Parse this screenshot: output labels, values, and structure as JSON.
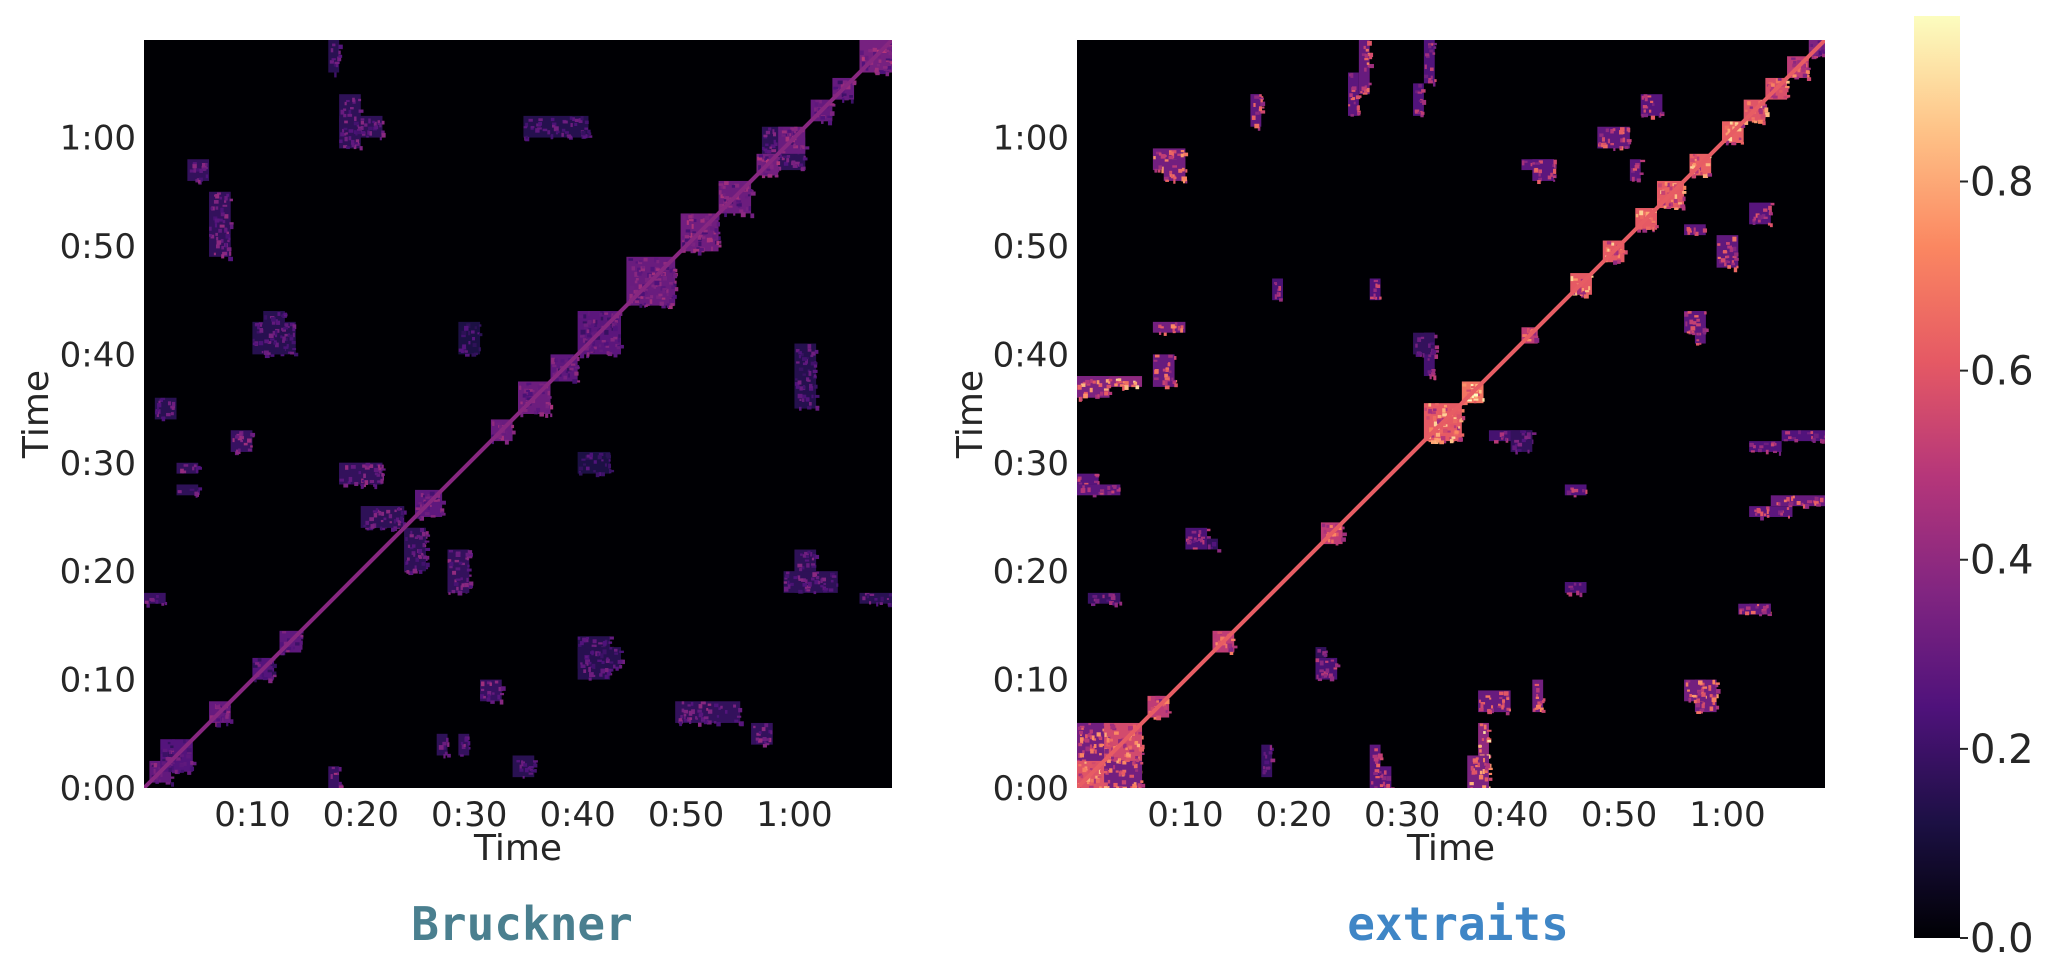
{
  "colors": {
    "background": "#000004",
    "title_left": "#4a7f8f",
    "title_right": "#3f86c6",
    "colormap": [
      "#000004",
      "#1c1044",
      "#4f127b",
      "#812581",
      "#b5367a",
      "#e55964",
      "#fb8761",
      "#fec287",
      "#fcfdbf"
    ]
  },
  "colorbar": {
    "ticks": [
      "0.0",
      "0.2",
      "0.4",
      "0.6",
      "0.8"
    ],
    "tick_values": [
      0.0,
      0.2,
      0.4,
      0.6,
      0.8
    ],
    "range": [
      0.0,
      0.975
    ],
    "colormap_name": "magma"
  },
  "chart_data": [
    {
      "type": "heatmap",
      "title": "Bruckner",
      "xlabel": "Time",
      "ylabel": "Time",
      "x_ticks": [
        "0:10",
        "0:20",
        "0:30",
        "0:40",
        "0:50",
        "1:00"
      ],
      "y_ticks": [
        "0:00",
        "0:10",
        "0:20",
        "0:30",
        "0:40",
        "0:50",
        "1:00"
      ],
      "x_tick_values": [
        10,
        20,
        30,
        40,
        50,
        60
      ],
      "y_tick_values": [
        0,
        10,
        20,
        30,
        40,
        50,
        60
      ],
      "xlim": [
        0,
        69
      ],
      "ylim": [
        0,
        69
      ],
      "colormap": "magma",
      "diagonal_value": 0.38,
      "blocks": [
        {
          "start": 0.5,
          "end": 2.5,
          "value": 0.34
        },
        {
          "start": 1.5,
          "end": 4.5,
          "value": 0.3
        },
        {
          "start": 6,
          "end": 8,
          "value": 0.35
        },
        {
          "start": 10,
          "end": 12,
          "value": 0.3
        },
        {
          "start": 12.5,
          "end": 14.5,
          "value": 0.33
        },
        {
          "start": 25,
          "end": 27.5,
          "value": 0.33
        },
        {
          "start": 32,
          "end": 34,
          "value": 0.36
        },
        {
          "start": 34.5,
          "end": 37.5,
          "value": 0.37
        },
        {
          "start": 37.5,
          "end": 40,
          "value": 0.33
        },
        {
          "start": 40,
          "end": 44,
          "value": 0.32
        },
        {
          "start": 44.5,
          "end": 49,
          "value": 0.36
        },
        {
          "start": 49.5,
          "end": 53,
          "value": 0.38
        },
        {
          "start": 53,
          "end": 56,
          "value": 0.37
        },
        {
          "start": 56.5,
          "end": 58.5,
          "value": 0.39
        },
        {
          "start": 58.5,
          "end": 61,
          "value": 0.36
        },
        {
          "start": 61.5,
          "end": 63.5,
          "value": 0.35
        },
        {
          "start": 63.5,
          "end": 65.5,
          "value": 0.35
        },
        {
          "start": 66,
          "end": 69,
          "value": 0.4
        }
      ],
      "offdiag": [
        {
          "x": [
            4,
            6
          ],
          "y": [
            56,
            58
          ],
          "value": 0.32
        },
        {
          "x": [
            18,
            22
          ],
          "y": [
            60,
            62
          ],
          "value": 0.3
        },
        {
          "x": [
            35,
            41
          ],
          "y": [
            60,
            62
          ],
          "value": 0.26
        },
        {
          "x": [
            10,
            14
          ],
          "y": [
            40,
            43
          ],
          "value": 0.27
        },
        {
          "x": [
            29,
            31
          ],
          "y": [
            40,
            43
          ],
          "value": 0.22
        },
        {
          "x": [
            18,
            22
          ],
          "y": [
            28,
            30
          ],
          "value": 0.32
        },
        {
          "x": [
            28,
            30
          ],
          "y": [
            18,
            22
          ],
          "value": 0.32
        },
        {
          "x": [
            20,
            24
          ],
          "y": [
            24,
            26
          ],
          "value": 0.3
        },
        {
          "x": [
            24,
            26
          ],
          "y": [
            20,
            24
          ],
          "value": 0.3
        },
        {
          "x": [
            3,
            5
          ],
          "y": [
            29,
            30
          ],
          "value": 0.32
        },
        {
          "x": [
            8,
            10
          ],
          "y": [
            31,
            33
          ],
          "value": 0.34
        },
        {
          "x": [
            40,
            44
          ],
          "y": [
            11,
            13
          ],
          "value": 0.27
        },
        {
          "x": [
            49,
            55
          ],
          "y": [
            6,
            8
          ],
          "value": 0.32
        },
        {
          "x": [
            59,
            64
          ],
          "y": [
            18,
            20
          ],
          "value": 0.3
        },
        {
          "x": [
            66,
            69
          ],
          "y": [
            17,
            18
          ],
          "value": 0.28
        },
        {
          "x": [
            17,
            18
          ],
          "y": [
            0,
            2
          ],
          "value": 0.35
        },
        {
          "x": [
            27,
            28
          ],
          "y": [
            3,
            5
          ],
          "value": 0.3
        },
        {
          "x": [
            34,
            36
          ],
          "y": [
            1,
            3
          ],
          "value": 0.28
        },
        {
          "x": [
            58,
            61
          ],
          "y": [
            57,
            60
          ],
          "value": 0.3
        }
      ]
    },
    {
      "type": "heatmap",
      "title": "extraits",
      "xlabel": "Time",
      "ylabel": "Time",
      "x_ticks": [
        "0:10",
        "0:20",
        "0:30",
        "0:40",
        "0:50",
        "1:00"
      ],
      "y_ticks": [
        "0:00",
        "0:10",
        "0:20",
        "0:30",
        "0:40",
        "0:50",
        "1:00"
      ],
      "x_tick_values": [
        10,
        20,
        30,
        40,
        50,
        60
      ],
      "y_tick_values": [
        0,
        10,
        20,
        30,
        40,
        50,
        60
      ],
      "xlim": [
        0,
        69
      ],
      "ylim": [
        0,
        69
      ],
      "colormap": "magma",
      "diagonal_value": 0.62,
      "blocks": [
        {
          "start": 0,
          "end": 2.5,
          "value": 0.7
        },
        {
          "start": 2.5,
          "end": 6,
          "value": 0.66
        },
        {
          "start": 6.5,
          "end": 8.5,
          "value": 0.6
        },
        {
          "start": 12.5,
          "end": 14.5,
          "value": 0.6
        },
        {
          "start": 22.5,
          "end": 24.5,
          "value": 0.6
        },
        {
          "start": 32,
          "end": 35.5,
          "value": 0.72
        },
        {
          "start": 35.5,
          "end": 37.5,
          "value": 0.8
        },
        {
          "start": 41,
          "end": 42.5,
          "value": 0.6
        },
        {
          "start": 45.5,
          "end": 47.5,
          "value": 0.72
        },
        {
          "start": 48.5,
          "end": 50.5,
          "value": 0.72
        },
        {
          "start": 51.5,
          "end": 53.5,
          "value": 0.72
        },
        {
          "start": 53.5,
          "end": 56,
          "value": 0.72
        },
        {
          "start": 56.5,
          "end": 58.5,
          "value": 0.74
        },
        {
          "start": 59.5,
          "end": 61.5,
          "value": 0.74
        },
        {
          "start": 61.5,
          "end": 63.5,
          "value": 0.7
        },
        {
          "start": 63.5,
          "end": 65.5,
          "value": 0.68
        },
        {
          "start": 65.5,
          "end": 67.5,
          "value": 0.6
        },
        {
          "start": 67.5,
          "end": 69,
          "value": 0.42
        }
      ],
      "offdiag": [
        {
          "x": [
            1,
            6
          ],
          "y": [
            0,
            4
          ],
          "value": 0.6
        },
        {
          "x": [
            0,
            3
          ],
          "y": [
            1,
            6
          ],
          "value": 0.6
        },
        {
          "x": [
            0,
            6
          ],
          "y": [
            37,
            38
          ],
          "value": 0.72
        },
        {
          "x": [
            7,
            10
          ],
          "y": [
            57,
            59
          ],
          "value": 0.6
        },
        {
          "x": [
            7,
            10
          ],
          "y": [
            42,
            43
          ],
          "value": 0.6
        },
        {
          "x": [
            16,
            17
          ],
          "y": [
            62,
            64
          ],
          "value": 0.55
        },
        {
          "x": [
            25,
            26
          ],
          "y": [
            62,
            66
          ],
          "value": 0.5
        },
        {
          "x": [
            31,
            32
          ],
          "y": [
            62,
            65
          ],
          "value": 0.45
        },
        {
          "x": [
            48,
            51
          ],
          "y": [
            59,
            61
          ],
          "value": 0.52
        },
        {
          "x": [
            41,
            44
          ],
          "y": [
            57,
            58
          ],
          "value": 0.5
        },
        {
          "x": [
            56,
            58
          ],
          "y": [
            51,
            52
          ],
          "value": 0.5
        },
        {
          "x": [
            62,
            64
          ],
          "y": [
            52,
            54
          ],
          "value": 0.48
        },
        {
          "x": [
            56,
            58
          ],
          "y": [
            42,
            44
          ],
          "value": 0.5
        },
        {
          "x": [
            36,
            38
          ],
          "y": [
            0,
            3
          ],
          "value": 0.64
        },
        {
          "x": [
            37,
            40
          ],
          "y": [
            7,
            9
          ],
          "value": 0.55
        },
        {
          "x": [
            56,
            58
          ],
          "y": [
            8,
            10
          ],
          "value": 0.6
        },
        {
          "x": [
            61,
            64
          ],
          "y": [
            16,
            17
          ],
          "value": 0.52
        },
        {
          "x": [
            22,
            24
          ],
          "y": [
            10,
            12
          ],
          "value": 0.42
        },
        {
          "x": [
            12,
            13
          ],
          "y": [
            22,
            23
          ],
          "value": 0.32
        },
        {
          "x": [
            0,
            2
          ],
          "y": [
            28,
            29
          ],
          "value": 0.48
        },
        {
          "x": [
            64,
            69
          ],
          "y": [
            26,
            27
          ],
          "value": 0.55
        },
        {
          "x": [
            65,
            69
          ],
          "y": [
            32,
            33
          ],
          "value": 0.45
        },
        {
          "x": [
            38,
            42
          ],
          "y": [
            32,
            33
          ],
          "value": 0.4
        },
        {
          "x": [
            31,
            33
          ],
          "y": [
            40,
            42
          ],
          "value": 0.32
        },
        {
          "x": [
            27,
            28
          ],
          "y": [
            45,
            47
          ],
          "value": 0.45
        },
        {
          "x": [
            18,
            19
          ],
          "y": [
            45,
            47
          ],
          "value": 0.42
        },
        {
          "x": [
            17,
            18
          ],
          "y": [
            1,
            4
          ],
          "value": 0.35
        },
        {
          "x": [
            27,
            28
          ],
          "y": [
            0,
            4
          ],
          "value": 0.5
        }
      ]
    }
  ]
}
